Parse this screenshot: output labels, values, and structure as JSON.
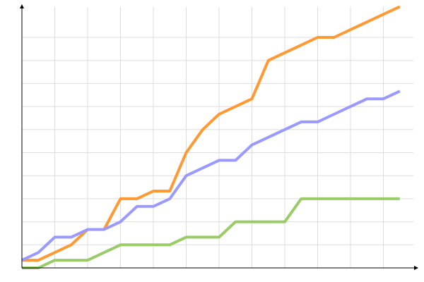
{
  "chart_data": {
    "type": "line",
    "title": "",
    "xlabel": "",
    "ylabel": "",
    "x": [
      0,
      1,
      2,
      3,
      4,
      5,
      6,
      7,
      8,
      9,
      10,
      11,
      12,
      13,
      14,
      15,
      16,
      17,
      18,
      19,
      20,
      21,
      22,
      23
    ],
    "xlim": [
      0,
      24
    ],
    "ylim": [
      0,
      34
    ],
    "x_grid_step": 2,
    "y_grid_step": 3,
    "grid": true,
    "tick_labels": false,
    "legend": "none",
    "series": [
      {
        "color": "#ff9933",
        "values": [
          1,
          1,
          2,
          3,
          5,
          5,
          9,
          9,
          10,
          10,
          15,
          18,
          20,
          21,
          22,
          27,
          28,
          29,
          30,
          30,
          31,
          32,
          33,
          34
        ]
      },
      {
        "color": "#9999ff",
        "values": [
          1,
          2,
          4,
          4,
          5,
          5,
          6,
          8,
          8,
          9,
          12,
          13,
          14,
          14,
          16,
          17,
          18,
          19,
          19,
          20,
          21,
          22,
          22,
          23
        ]
      },
      {
        "color": "#99cc66",
        "values": [
          0,
          0,
          1,
          1,
          1,
          2,
          3,
          3,
          3,
          3,
          4,
          4,
          4,
          6,
          6,
          6,
          6,
          9,
          9,
          9,
          9,
          9,
          9,
          9
        ]
      }
    ]
  }
}
